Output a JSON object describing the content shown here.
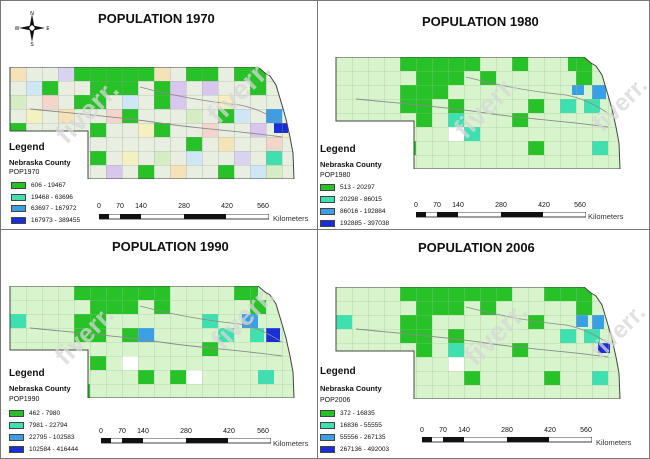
{
  "units_label": "Kilometers",
  "scale_ticks": [
    "0",
    "70",
    "140",
    "280",
    "420",
    "560"
  ],
  "compass": {
    "n": "N",
    "s": "S",
    "e": "E",
    "w": "W"
  },
  "watermark": "fiverr.",
  "colors": {
    "class1": "#27c227",
    "class2": "#3ee0b0",
    "class3": "#3b9fe6",
    "class4": "#1a2ed8",
    "base": "#d7f4cc",
    "county_border": "#8a8a8a",
    "state_border": "#444444"
  },
  "panels": [
    {
      "title": "POPULATION 1970",
      "legend_title": "Legend",
      "legend_subtitle": "Nebraska County",
      "field": "POP1970",
      "classes": [
        {
          "label": "606 - 19467",
          "color": "#27c227"
        },
        {
          "label": "19468 - 63696",
          "color": "#3ee0b0"
        },
        {
          "label": "63697 - 167972",
          "color": "#3b9fe6"
        },
        {
          "label": "167973 - 389455",
          "color": "#1a2ed8"
        }
      ]
    },
    {
      "title": "POPULATION 1980",
      "legend_title": "Legend",
      "legend_subtitle": "Nebraska County",
      "field": "POP1980",
      "classes": [
        {
          "label": "513 - 20297",
          "color": "#27c227"
        },
        {
          "label": "20298 - 86015",
          "color": "#3ee0b0"
        },
        {
          "label": "86016 - 192884",
          "color": "#3b9fe6"
        },
        {
          "label": "192885 - 397038",
          "color": "#1a2ed8"
        }
      ]
    },
    {
      "title": "POPULATION 1990",
      "legend_title": "Legend",
      "legend_subtitle": "Nebraska County",
      "field": "POP1990",
      "classes": [
        {
          "label": "462 - 7980",
          "color": "#27c227"
        },
        {
          "label": "7981 - 22794",
          "color": "#3ee0b0"
        },
        {
          "label": "22795 - 102583",
          "color": "#3b9fe6"
        },
        {
          "label": "102584 - 416444",
          "color": "#1a2ed8"
        }
      ]
    },
    {
      "title": "POPULATION 2006",
      "legend_title": "Legend",
      "legend_subtitle": "Nebraska County",
      "field": "POP2006",
      "classes": [
        {
          "label": "372 - 16835",
          "color": "#27c227"
        },
        {
          "label": "16836 - 55555",
          "color": "#3ee0b0"
        },
        {
          "label": "55556 - 267135",
          "color": "#3b9fe6"
        },
        {
          "label": "267136 - 492003",
          "color": "#1a2ed8"
        }
      ]
    }
  ]
}
